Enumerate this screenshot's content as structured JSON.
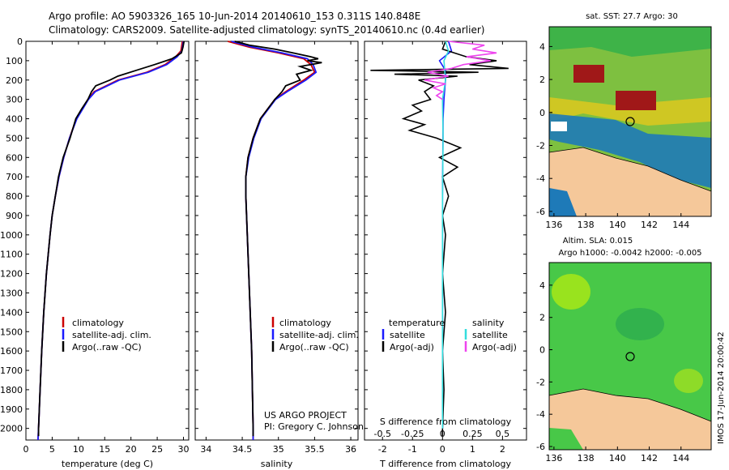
{
  "header": {
    "line1": "Argo profile: AO 5903326_165 10-Jun-2014 20140610_153 0.311S 140.848E",
    "line2": "Climatology: CARS2009. Satellite-adjusted climatology: synTS_20140610.nc (0.4d earlier)"
  },
  "credits": {
    "project": "US ARGO PROJECT",
    "pi": "PI: Gregory C. Johnson",
    "stamp": "IMOS 17-Jun-2014 20:00:42"
  },
  "colors": {
    "climatology": "#cc0000",
    "satellite": "#1a1aff",
    "argo": "#000000",
    "sal_satellite": "#33dddd",
    "sal_argo": "#ee44ee",
    "land": "#f5c89a"
  },
  "legends": {
    "temp": [
      "climatology",
      "satellite-adj. clim.",
      "Argo(..raw -QC)"
    ],
    "sal": [
      "climatology",
      "satellite-adj. clim.",
      "Argo(..raw -QC)"
    ],
    "diff_left_title": "temperature",
    "diff_right_title": "salinity",
    "diff_left": [
      "satellite",
      "Argo(-adj)"
    ],
    "diff_right": [
      "satellite",
      "Argo(-adj)"
    ]
  },
  "maps": {
    "sst_title": "sat. SST: 27.7 Argo: 30",
    "sla_title1": "Altim. SLA: 0.015",
    "sla_title2": "Argo h1000: -0.0042 h2000: -0.005",
    "xticks": [
      "136",
      "138",
      "140",
      "142",
      "144"
    ],
    "yticks": [
      "4",
      "2",
      "0",
      "-2",
      "-4",
      "-6"
    ]
  },
  "chart_data": [
    {
      "type": "line",
      "xlabel": "temperature (deg C)",
      "ylabel": "",
      "xlim": [
        0,
        31
      ],
      "ylim": [
        2060,
        0
      ],
      "xticks": [
        0,
        5,
        10,
        15,
        20,
        25,
        30
      ],
      "yticks": [
        0,
        100,
        200,
        300,
        400,
        500,
        600,
        700,
        800,
        900,
        1000,
        1100,
        1200,
        1300,
        1400,
        1500,
        1600,
        1700,
        1800,
        1900,
        2000
      ],
      "series": [
        {
          "name": "climatology",
          "depth": [
            0,
            50,
            80,
            120,
            160,
            200,
            260,
            300,
            400,
            500,
            600,
            700,
            800,
            900,
            1000,
            1200,
            1400,
            1600,
            1800,
            2000,
            2060
          ],
          "values": [
            29.8,
            29.5,
            28.5,
            26.5,
            23.0,
            17.5,
            13.0,
            11.8,
            9.6,
            8.3,
            7.2,
            6.3,
            5.6,
            5.0,
            4.6,
            3.9,
            3.4,
            3.0,
            2.7,
            2.4,
            2.3
          ]
        },
        {
          "name": "satellite-adj. clim.",
          "depth": [
            0,
            50,
            80,
            120,
            160,
            200,
            260,
            300,
            400,
            500,
            600,
            700,
            800,
            900,
            1000,
            1200,
            1400,
            1600,
            1800,
            2000,
            2060
          ],
          "values": [
            30.0,
            29.7,
            28.8,
            26.8,
            23.3,
            17.8,
            13.2,
            11.9,
            9.7,
            8.3,
            7.2,
            6.3,
            5.6,
            5.0,
            4.6,
            3.9,
            3.4,
            3.0,
            2.7,
            2.4,
            2.3
          ]
        },
        {
          "name": "Argo(..raw -QC)",
          "depth": [
            0,
            30,
            60,
            90,
            120,
            150,
            180,
            200,
            230,
            260,
            300,
            350,
            400,
            500,
            600,
            700,
            800,
            900,
            1000,
            1200,
            1400,
            1600,
            1800,
            2000,
            2040
          ],
          "values": [
            30.1,
            29.9,
            29.6,
            27.8,
            24.5,
            21.0,
            17.5,
            16.0,
            13.3,
            12.5,
            11.8,
            10.6,
            9.5,
            8.4,
            7.1,
            6.2,
            5.6,
            5.0,
            4.6,
            3.9,
            3.4,
            3.0,
            2.7,
            2.4,
            2.4
          ]
        }
      ]
    },
    {
      "type": "line",
      "xlabel": "salinity",
      "xlim": [
        33.85,
        36.1
      ],
      "ylim": [
        2060,
        0
      ],
      "xticks": [
        34,
        34.5,
        35,
        35.5,
        36
      ],
      "series": [
        {
          "name": "climatology",
          "depth": [
            0,
            30,
            60,
            90,
            120,
            160,
            200,
            260,
            300,
            400,
            500,
            600,
            700,
            800,
            1000,
            1200,
            1400,
            1600,
            1800,
            2000,
            2060
          ],
          "values": [
            34.3,
            34.6,
            35.0,
            35.35,
            35.45,
            35.5,
            35.35,
            35.1,
            34.95,
            34.75,
            34.65,
            34.58,
            34.55,
            34.55,
            34.57,
            34.59,
            34.61,
            34.63,
            34.64,
            34.65,
            34.65
          ]
        },
        {
          "name": "satellite-adj. clim.",
          "depth": [
            0,
            30,
            60,
            90,
            120,
            160,
            200,
            260,
            300,
            400,
            500,
            600,
            700,
            800,
            1000,
            1200,
            1400,
            1600,
            1800,
            2000,
            2060
          ],
          "values": [
            34.35,
            34.65,
            35.05,
            35.4,
            35.48,
            35.52,
            35.38,
            35.12,
            34.96,
            34.76,
            34.66,
            34.59,
            34.55,
            34.55,
            34.57,
            34.59,
            34.61,
            34.63,
            34.64,
            34.65,
            34.65
          ]
        },
        {
          "name": "Argo(..raw -QC)",
          "depth": [
            0,
            20,
            40,
            60,
            80,
            90,
            100,
            110,
            130,
            150,
            170,
            200,
            230,
            260,
            300,
            400,
            500,
            600,
            700,
            800,
            1000,
            1200,
            1400,
            1600,
            1800,
            2000,
            2040
          ],
          "values": [
            34.4,
            34.6,
            34.95,
            35.2,
            35.45,
            35.55,
            35.4,
            35.6,
            35.3,
            35.45,
            35.25,
            35.3,
            35.1,
            35.05,
            34.95,
            34.75,
            34.65,
            34.58,
            34.55,
            34.55,
            34.57,
            34.59,
            34.61,
            34.63,
            34.64,
            34.65,
            34.65
          ]
        }
      ]
    },
    {
      "type": "line",
      "xlabel_top": "S difference from climatology",
      "xlabel": "T difference from climatology",
      "xlim": [
        -2.6,
        2.8
      ],
      "ylim": [
        2060,
        0
      ],
      "xticks": [
        -2,
        -1,
        0,
        1,
        2
      ],
      "xticks_top_labels": [
        "-0.5",
        "-0.25",
        "0",
        "0.25",
        "0.5"
      ],
      "xticks_top_values": [
        -2,
        -1,
        0,
        1,
        2
      ],
      "series": [
        {
          "name": "temperature satellite",
          "depth": [
            0,
            50,
            100,
            150,
            200,
            300,
            400,
            600,
            800,
            1000,
            1500,
            2000
          ],
          "values": [
            0.2,
            0.3,
            -0.1,
            0.1,
            0.1,
            0.05,
            0.02,
            0.01,
            0.0,
            0.0,
            0.0,
            0.0
          ]
        },
        {
          "name": "temperature Argo(-adj)",
          "depth": [
            0,
            40,
            80,
            100,
            120,
            140,
            150,
            160,
            170,
            180,
            200,
            230,
            260,
            300,
            330,
            360,
            400,
            430,
            460,
            500,
            550,
            600,
            650,
            700,
            800,
            900,
            1000,
            1200,
            1400,
            1600,
            1800,
            2000,
            2040
          ],
          "values": [
            0.1,
            0.0,
            0.8,
            1.8,
            0.9,
            2.2,
            -2.4,
            1.2,
            -1.6,
            0.5,
            -0.8,
            -0.3,
            -0.6,
            -0.4,
            -1.0,
            -0.7,
            -1.3,
            -0.6,
            -1.1,
            -0.2,
            0.6,
            -0.1,
            0.5,
            0.0,
            0.2,
            0.0,
            0.1,
            0.0,
            0.1,
            0.0,
            0.05,
            0.0,
            0.0
          ]
        },
        {
          "name": "salinity satellite",
          "depth": [
            0,
            50,
            100,
            200,
            300,
            500,
            800,
            1000,
            1500,
            2000
          ],
          "values": [
            0.1,
            0.2,
            0.05,
            0.1,
            0.0,
            0.02,
            0.0,
            0.0,
            0.0,
            0.0
          ]
        },
        {
          "name": "salinity Argo(-adj)",
          "depth": [
            0,
            20,
            40,
            60,
            80,
            100,
            120,
            140,
            160,
            180,
            200,
            220,
            240,
            260,
            280,
            300
          ],
          "values": [
            0.2,
            1.4,
            1.0,
            1.8,
            0.8,
            1.6,
            0.7,
            0.3,
            -0.5,
            0.2,
            -0.6,
            0.1,
            -0.3,
            0.0,
            -0.2,
            0.0
          ]
        }
      ]
    }
  ]
}
